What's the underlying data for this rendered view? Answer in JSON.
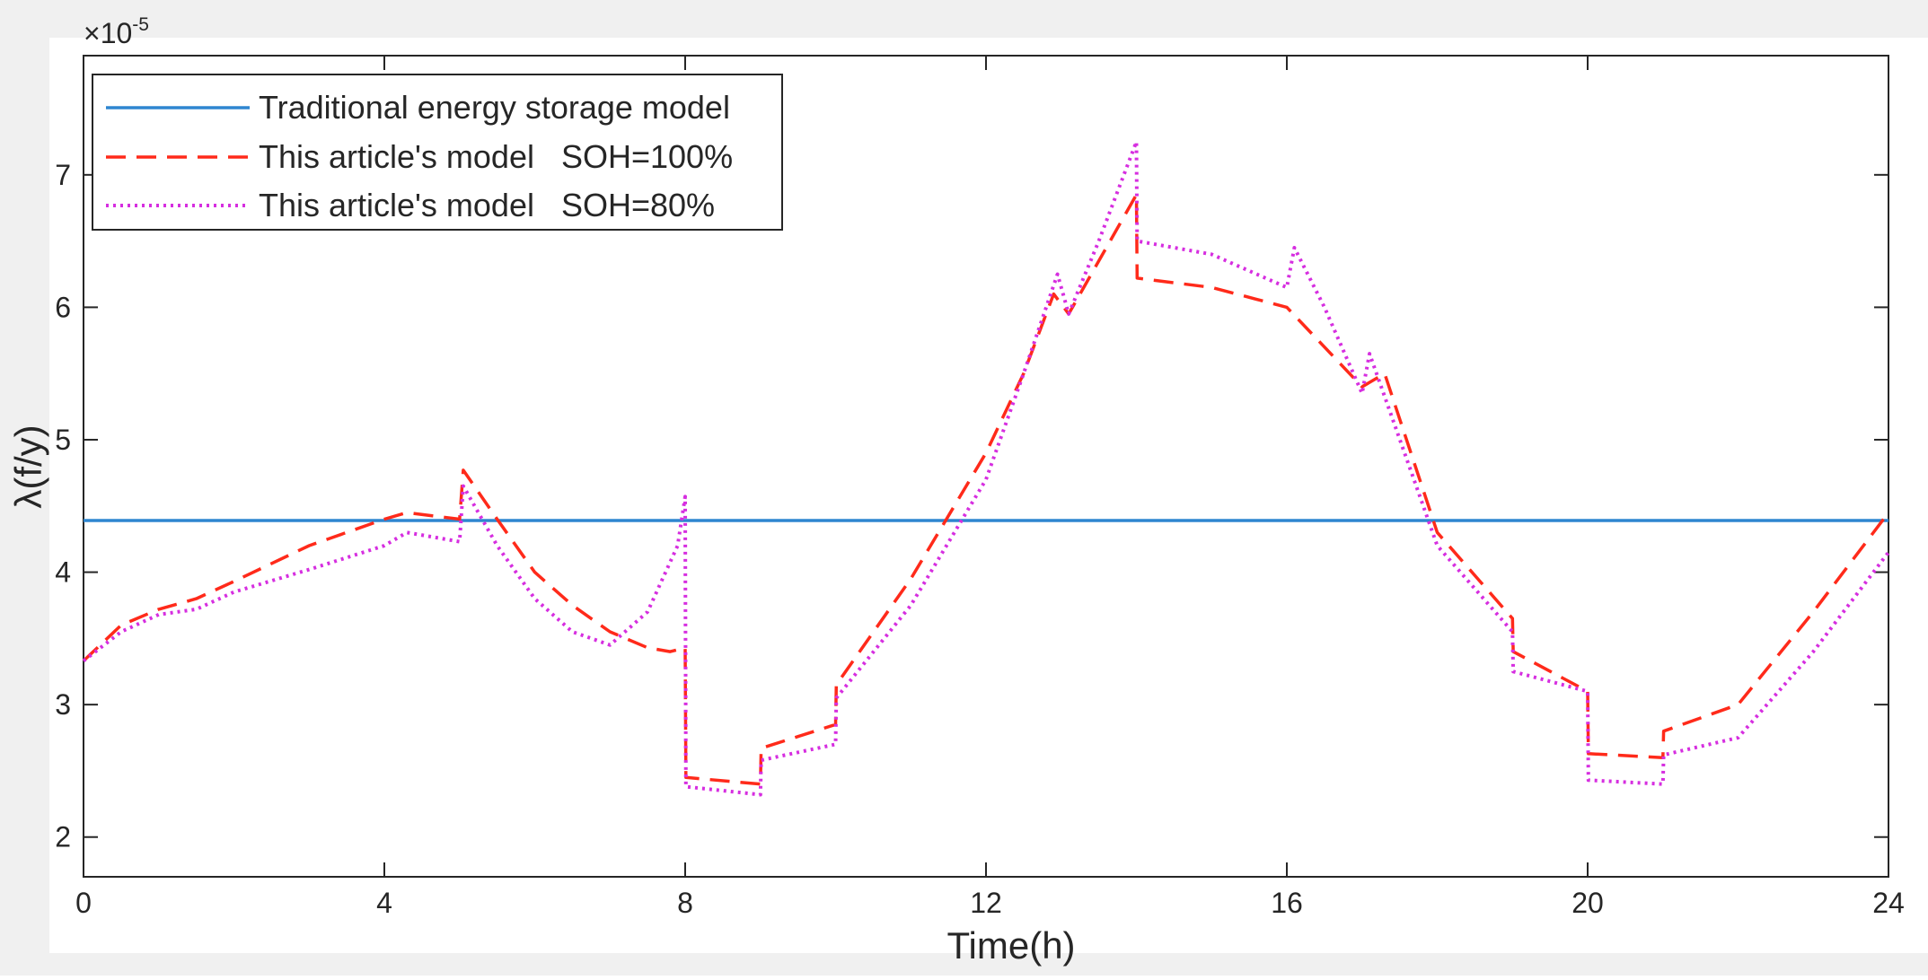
{
  "chart_data": {
    "type": "line",
    "title": "",
    "xlabel": "Time(h)",
    "ylabel": "λ(f/y)",
    "y_exponent_label": "×10",
    "y_exponent_power": "-5",
    "xlim": [
      0,
      24
    ],
    "ylim": [
      1.7,
      7.9
    ],
    "xticks": [
      0,
      4,
      8,
      12,
      16,
      20,
      24
    ],
    "yticks": [
      2,
      3,
      4,
      5,
      6,
      7
    ],
    "grid": false,
    "legend_position": "top-left",
    "colors": {
      "blue": "#2e86d0",
      "red": "#ff2a1a",
      "magenta": "#d62ee0",
      "axis": "#262626",
      "frame_bg": "#f0f0f0"
    },
    "series": [
      {
        "name": "Traditional energy storage model",
        "style": "solid",
        "color": "#2e86d0",
        "x": [
          0,
          24
        ],
        "y": [
          4.39,
          4.39
        ]
      },
      {
        "name": "This article's model   SOH=100%",
        "style": "dashed",
        "color": "#ff2a1a",
        "x": [
          0,
          0.5,
          1,
          1.5,
          2,
          3,
          4,
          4.3,
          5,
          5.05,
          5.5,
          6,
          6.5,
          7,
          7.5,
          7.8,
          8,
          8.01,
          9,
          9.01,
          10,
          10.01,
          11,
          12,
          12.5,
          12.9,
          13.1,
          13.5,
          14,
          14.01,
          15,
          16,
          16.5,
          17,
          17.3,
          18,
          19,
          19.01,
          20,
          20.01,
          21,
          21.01,
          22,
          23,
          24
        ],
        "y": [
          3.33,
          3.6,
          3.72,
          3.8,
          3.93,
          4.2,
          4.4,
          4.45,
          4.4,
          4.77,
          4.4,
          4.0,
          3.75,
          3.55,
          3.43,
          3.4,
          3.43,
          2.45,
          2.4,
          2.67,
          2.85,
          3.15,
          3.95,
          4.9,
          5.5,
          6.1,
          5.95,
          6.35,
          6.85,
          6.22,
          6.15,
          6.0,
          5.7,
          5.4,
          5.5,
          4.3,
          3.65,
          3.4,
          3.1,
          2.63,
          2.6,
          2.8,
          3.0,
          3.7,
          4.45
        ]
      },
      {
        "name": "This article's model   SOH=80%",
        "style": "dotted",
        "color": "#d62ee0",
        "x": [
          0,
          0.5,
          1,
          1.5,
          2,
          3,
          4,
          4.3,
          5,
          5.05,
          5.5,
          6,
          6.5,
          7,
          7.5,
          7.9,
          8,
          8.01,
          9,
          9.01,
          10,
          10.01,
          11,
          12,
          12.5,
          12.95,
          13.1,
          13.5,
          14,
          14.01,
          15,
          16,
          16.1,
          16.5,
          17,
          17.1,
          18,
          19,
          19.01,
          20,
          20.01,
          21,
          21.01,
          22,
          23,
          24
        ],
        "y": [
          3.33,
          3.55,
          3.68,
          3.72,
          3.85,
          4.02,
          4.2,
          4.3,
          4.23,
          4.65,
          4.2,
          3.8,
          3.55,
          3.45,
          3.7,
          4.2,
          4.57,
          2.38,
          2.32,
          2.58,
          2.7,
          3.05,
          3.75,
          4.7,
          5.5,
          6.25,
          5.95,
          6.5,
          7.25,
          6.5,
          6.4,
          6.15,
          6.45,
          6.0,
          5.35,
          5.65,
          4.2,
          3.55,
          3.25,
          3.1,
          2.43,
          2.4,
          2.62,
          2.75,
          3.4,
          4.15
        ]
      }
    ]
  }
}
